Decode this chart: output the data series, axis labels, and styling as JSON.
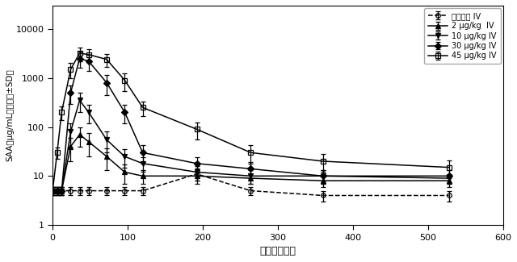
{
  "title": "",
  "xlabel": "時間（時間）",
  "ylabel": "SAA（μg/mL）（平均±SD）",
  "xlim": [
    0,
    600
  ],
  "ylim": [
    1,
    30000
  ],
  "xticks": [
    0,
    100,
    200,
    300,
    400,
    500,
    600
  ],
  "yticks": [
    1,
    10,
    100,
    1000,
    10000
  ],
  "series": {
    "placebo": {
      "label": "プラセボ IV",
      "linestyle": "--",
      "marker": "o",
      "markersize": 4,
      "color": "#000000",
      "fillstyle": "none",
      "x": [
        0,
        6,
        12,
        24,
        36,
        48,
        72,
        96,
        120,
        192,
        264,
        360,
        528
      ],
      "y": [
        5,
        5,
        5,
        5,
        5,
        5,
        5,
        5,
        5,
        11,
        5,
        4,
        4
      ],
      "yerr": [
        1,
        1,
        1,
        1,
        1,
        1,
        1,
        1,
        1,
        3,
        1,
        1,
        1
      ]
    },
    "dose2": {
      "label": "2 μg/kg  IV",
      "linestyle": "-",
      "marker": "^",
      "markersize": 5,
      "color": "#000000",
      "fillstyle": "full",
      "x": [
        0,
        6,
        12,
        24,
        36,
        48,
        72,
        96,
        120,
        192,
        264,
        360,
        528
      ],
      "y": [
        5,
        5,
        5,
        40,
        70,
        50,
        25,
        12,
        10,
        10,
        9,
        8,
        8
      ],
      "yerr": [
        1,
        1,
        1,
        20,
        30,
        25,
        12,
        5,
        3,
        3,
        2,
        2,
        2
      ]
    },
    "dose10": {
      "label": "10 μg/kg IV",
      "linestyle": "-",
      "marker": "v",
      "markersize": 5,
      "color": "#000000",
      "fillstyle": "full",
      "x": [
        0,
        6,
        12,
        24,
        36,
        48,
        72,
        96,
        120,
        192,
        264,
        360,
        528
      ],
      "y": [
        5,
        5,
        5,
        80,
        350,
        200,
        55,
        25,
        18,
        12,
        10,
        10,
        9
      ],
      "yerr": [
        1,
        1,
        1,
        40,
        150,
        80,
        25,
        10,
        6,
        4,
        3,
        3,
        2
      ]
    },
    "dose30": {
      "label": "30 μg/kg IV",
      "linestyle": "-",
      "marker": "D",
      "markersize": 4,
      "color": "#000000",
      "fillstyle": "full",
      "x": [
        0,
        6,
        12,
        24,
        36,
        48,
        72,
        96,
        120,
        192,
        264,
        360,
        528
      ],
      "y": [
        5,
        5,
        5,
        500,
        2500,
        2200,
        800,
        200,
        30,
        18,
        14,
        10,
        10
      ],
      "yerr": [
        1,
        1,
        1,
        200,
        900,
        800,
        350,
        80,
        12,
        6,
        5,
        3,
        3
      ]
    },
    "dose45": {
      "label": "45 μg/kg IV",
      "linestyle": "-",
      "marker": "s",
      "markersize": 4,
      "color": "#000000",
      "fillstyle": "none",
      "x": [
        0,
        6,
        12,
        24,
        36,
        48,
        72,
        96,
        120,
        192,
        264,
        360,
        528
      ],
      "y": [
        5,
        30,
        200,
        1500,
        3200,
        3000,
        2400,
        900,
        250,
        90,
        30,
        20,
        15
      ],
      "yerr": [
        1,
        8,
        60,
        500,
        1000,
        900,
        700,
        350,
        80,
        35,
        12,
        8,
        6
      ]
    }
  },
  "background_color": "#ffffff",
  "plot_bg_color": "#ffffff"
}
